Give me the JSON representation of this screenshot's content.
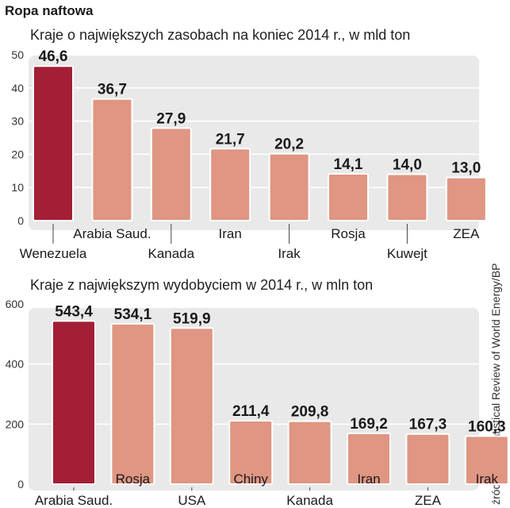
{
  "title": "Ropa naftowa",
  "source": "źródło: BP Statistical Review of World Energy/BP",
  "colors": {
    "highlight": "#a31f36",
    "bar": "#df9682",
    "plot_bg": "#e9e9e9",
    "grid": "#ffffff",
    "text": "#1a1a1a"
  },
  "chart_data": [
    {
      "type": "bar",
      "title": "Kraje o największych zasobach na koniec 2014 r., w mld ton",
      "categories": [
        "Wenezuela",
        "Arabia Saud.",
        "Kanada",
        "Iran",
        "Irak",
        "Rosja",
        "Kuwejt",
        "ZEA"
      ],
      "values": [
        46.6,
        36.7,
        27.9,
        21.7,
        20.2,
        14.1,
        14.0,
        13.0
      ],
      "value_labels": [
        "46,6",
        "36,7",
        "27,9",
        "21,7",
        "20,2",
        "14,1",
        "14,0",
        "13,0"
      ],
      "ylim": [
        0,
        50
      ],
      "yticks": [
        0,
        10,
        20,
        30,
        40,
        50
      ],
      "ytick_labels": [
        "0",
        "10",
        "20",
        "30",
        "40",
        "50"
      ],
      "highlight_index": 0,
      "grid": true
    },
    {
      "type": "bar",
      "title": "Kraje z największym wydobyciem w 2014 r., w mln ton",
      "categories": [
        "Arabia Saud.",
        "Rosja",
        "USA",
        "Chiny",
        "Kanada",
        "Iran",
        "ZEA",
        "Irak"
      ],
      "values": [
        543.4,
        534.1,
        519.9,
        211.4,
        209.8,
        169.2,
        167.3,
        160.3
      ],
      "value_labels": [
        "543,4",
        "534,1",
        "519,9",
        "211,4",
        "209,8",
        "169,2",
        "167,3",
        "160,3"
      ],
      "ylim": [
        0,
        600
      ],
      "yticks": [
        0,
        200,
        400,
        600
      ],
      "ytick_labels": [
        "0",
        "200",
        "400",
        "600"
      ],
      "highlight_index": 0,
      "grid": true
    }
  ]
}
